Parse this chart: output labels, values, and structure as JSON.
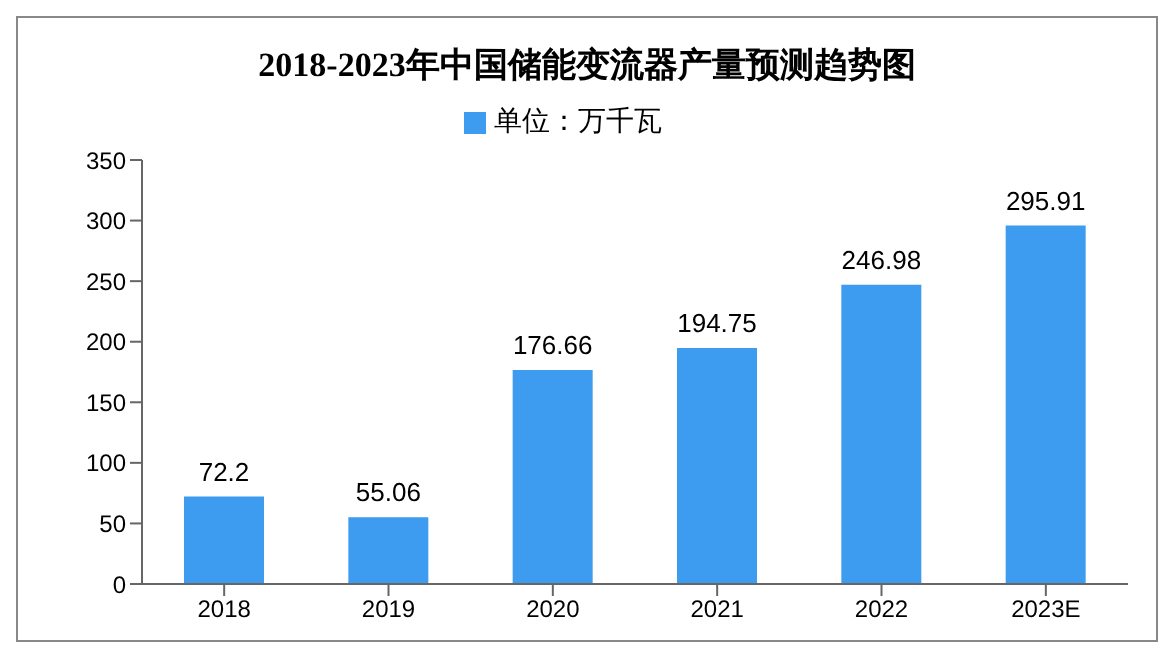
{
  "chart_data": {
    "type": "bar",
    "title": "2018-2023年中国储能变流器产量预测趋势图",
    "categories": [
      "2018",
      "2019",
      "2020",
      "2021",
      "2022",
      "2023E"
    ],
    "series": [
      {
        "name": "单位：万千瓦",
        "color": "#3d9bf0",
        "values": [
          72.2,
          55.06,
          176.66,
          194.75,
          246.98,
          295.91
        ]
      }
    ],
    "ylim": [
      0,
      350
    ],
    "yticks": [
      0,
      50,
      100,
      150,
      200,
      250,
      300,
      350
    ],
    "grid": false,
    "legend": "top",
    "data_labels": true
  }
}
